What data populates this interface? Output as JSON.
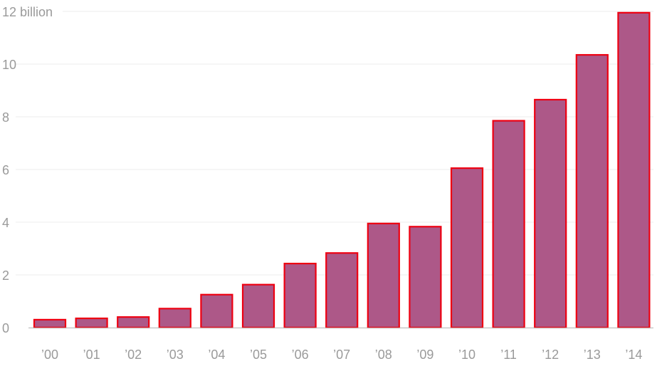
{
  "chart_data": {
    "type": "bar",
    "title": "",
    "xlabel": "",
    "ylabel": "",
    "categories": [
      "’00",
      "’01",
      "’02",
      "’03",
      "’04",
      "’05",
      "’06",
      "’07",
      "’08",
      "’09",
      "’10",
      "’11",
      "’12",
      "’13",
      "’14"
    ],
    "values": [
      0.3,
      0.35,
      0.4,
      0.72,
      1.25,
      1.63,
      2.43,
      2.83,
      3.95,
      3.83,
      6.05,
      7.85,
      8.65,
      10.35,
      11.95
    ],
    "ylim": [
      0,
      12
    ],
    "y_ticks": [
      {
        "value": 0,
        "label": "0"
      },
      {
        "value": 2,
        "label": "2"
      },
      {
        "value": 4,
        "label": "4"
      },
      {
        "value": 6,
        "label": "6"
      },
      {
        "value": 8,
        "label": "8"
      },
      {
        "value": 10,
        "label": "10"
      },
      {
        "value": 12,
        "label": "12 billion"
      }
    ],
    "grid": true,
    "legend": "none",
    "colors": {
      "bar_fill": "#ad5888",
      "bar_stroke": "#ee0011",
      "grid": "#ececec",
      "axis": "#b3b3b3",
      "tick_text": "#9a9a9a"
    }
  }
}
